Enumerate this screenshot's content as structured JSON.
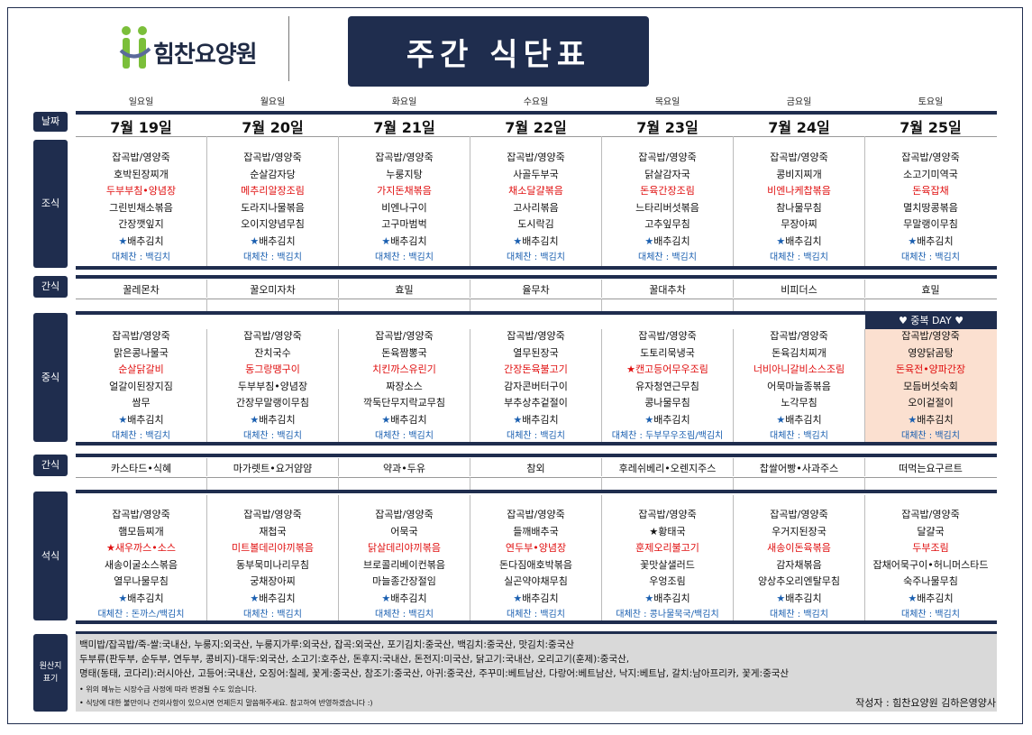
{
  "header": {
    "logo_text": "힘찬요양원",
    "title": "주간 식단표"
  },
  "weekdays": [
    "일요일",
    "월요일",
    "화요일",
    "수요일",
    "목요일",
    "금요일",
    "토요일"
  ],
  "labels": {
    "date": "날짜",
    "breakfast": "조식",
    "snack1": "간식",
    "lunch": "중식",
    "snack2": "간식",
    "dinner": "석식",
    "origin": "원산지\n표기"
  },
  "dates": [
    "7월 19일",
    "7월 20일",
    "7월 21일",
    "7월 22일",
    "7월 23일",
    "7월 24일",
    "7월 25일"
  ],
  "breakfast": [
    [
      "잡곡밥/영양죽",
      "호박된장찌개",
      "두부부침•양념장",
      "그린빈채소볶음",
      "간장깻잎지",
      "★배추김치",
      "대체찬 : 백김치"
    ],
    [
      "잡곡밥/영양죽",
      "순살감자당",
      "메추리알장조림",
      "도라지나물볶음",
      "오이지양념무침",
      "★배추김치",
      "대체찬 : 백김치"
    ],
    [
      "잡곡밥/영양죽",
      "누룽지탕",
      "가지돈채볶음",
      "비엔나구이",
      "고구마범벅",
      "★배추김치",
      "대체찬 : 백김치"
    ],
    [
      "잡곡밥/영양죽",
      "사골두부국",
      "채소달걀볶음",
      "고사리볶음",
      "도시락김",
      "★배추김치",
      "대체찬 : 백김치"
    ],
    [
      "잡곡밥/영양죽",
      "닭살감자국",
      "돈육간장조림",
      "느타리버섯볶음",
      "고추잎무침",
      "★배추김치",
      "대체찬 : 백김치"
    ],
    [
      "잡곡밥/영양죽",
      "콩비지찌개",
      "비엔나케찹볶음",
      "참나물무침",
      "무장아찌",
      "★배추김치",
      "대체찬 : 백김치"
    ],
    [
      "잡곡밥/영양죽",
      "소고기미역국",
      "돈육잡채",
      "멸치땅콩볶음",
      "무말랭이무침",
      "★배추김치",
      "대체찬 : 백김치"
    ]
  ],
  "snack1": [
    "꿀레몬차",
    "꿀오미자차",
    "효밀",
    "율무차",
    "꿀대추차",
    "비피더스",
    "효밀"
  ],
  "lunch_special_header": "♥ 중복 DAY ♥",
  "lunch": [
    [
      "잡곡밥/영양죽",
      "맑은콩나물국",
      "순살닭갈비",
      "얼갈이된장지짐",
      "쌈무",
      "★배추김치",
      "대체찬 : 백김치"
    ],
    [
      "잡곡밥/영양죽",
      "잔치국수",
      "동그랑땡구이",
      "두부부침•양념장",
      "간장무말랭이무침",
      "★배추김치",
      "대체찬 : 백김치"
    ],
    [
      "잡곡밥/영양죽",
      "돈육짬뽕국",
      "치킨까스유린기",
      "짜장소스",
      "깍둑단무지락교무침",
      "★배추김치",
      "대체찬 : 백김치"
    ],
    [
      "잡곡밥/영양죽",
      "열무된장국",
      "간장돈육불고기",
      "감자콘버터구이",
      "부추상추겉절이",
      "★배추김치",
      "대체찬 : 백김치"
    ],
    [
      "잡곡밥/영양죽",
      "도토리묵냉국",
      "★캔고등어무우조림",
      "유자청연근무침",
      "콩나물무침",
      "★배추김치",
      "대체찬 : 두부무우조림/백김치"
    ],
    [
      "잡곡밥/영양죽",
      "돈육김치찌개",
      "너비아니갈비소스조림",
      "어묵마늘종볶음",
      "노각무침",
      "★배추김치",
      "대체찬 : 백김치"
    ],
    [
      "잡곡밥/영양죽",
      "영양닭곰탕",
      "돈육전•양파간장",
      "모듬버섯숙회",
      "오이겉절이",
      "★배추김치",
      "대체찬 : 백김치"
    ]
  ],
  "snack2": [
    "카스타드•식혜",
    "마가렛트•요거얌얌",
    "약과•두유",
    "참외",
    "후레쉬베리•오렌지주스",
    "찹쌀어빵•사과주스",
    "떠먹는요구르트"
  ],
  "dinner": [
    [
      "잡곡밥/영양죽",
      "햄모듬찌개",
      "★새우까스•소스",
      "새송이굴소스볶음",
      "열무나물무침",
      "★배추김치",
      "대체찬 : 돈까스/백김치"
    ],
    [
      "잡곡밥/영양죽",
      "재첩국",
      "미트볼데리야끼볶음",
      "동부묵미나리무침",
      "궁채장아찌",
      "★배추김치",
      "대체찬 : 백김치"
    ],
    [
      "잡곡밥/영양죽",
      "어묵국",
      "닭살데리야끼볶음",
      "브로콜리베이컨볶음",
      "마늘종간장절임",
      "★배추김치",
      "대체찬 : 백김치"
    ],
    [
      "잡곡밥/영양죽",
      "들깨배추국",
      "연두부•양념장",
      "돈다짐애호박볶음",
      "실곤약야채무침",
      "★배추김치",
      "대체찬 : 백김치"
    ],
    [
      "잡곡밥/영양죽",
      "★황태국",
      "훈제오리불고기",
      "꽃맛살샐러드",
      "우엉조림",
      "★배추김치",
      "대체찬 : 콩나물묵국/백김치"
    ],
    [
      "잡곡밥/영양죽",
      "우거지된장국",
      "새송이돈육볶음",
      "감자채볶음",
      "양상추오리엔탈무침",
      "★배추김치",
      "대체찬 : 백김치"
    ],
    [
      "잡곡밥/영양죽",
      "달걀국",
      "두부조림",
      "잡채어묵구이•허니머스타드",
      "숙주나물무침",
      "★배추김치",
      "대체찬 : 백김치"
    ]
  ],
  "red_index": {
    "breakfast": 2,
    "lunch": 2,
    "dinner": 2
  },
  "origin": {
    "line1": "백미밥/잡곡밥/죽-쌀:국내산, 누룽지:외국산, 누룽지가루:외국산, 잡곡:외국산, 포기김치:중국산, 백김치:중국산, 맛김치:중국산",
    "line2": "두부류(판두부, 순두부, 연두부, 콩비지)-대두:외국산, 소고기:호주산, 돈후지:국내산, 돈전지:미국산, 닭고기:국내산, 오리고기(훈제):중국산,",
    "line3": "명태(동태, 코다리):러시아산, 고등어:국내산, 오징어:칠레, 꽃게:중국산, 참조기:중국산, 아귀:중국산, 주꾸미:베트남산, 다랑어:베트남산, 낙지:베트남, 갈치:남아프리카, 꽃게:중국산",
    "note1": "• 위의 메뉴는 시장수급 사정에 따라 변경될 수도 있습니다.",
    "note2": "• 식당에 대한 불만이나 건의사항이 있으시면 언제든지 말씀해주세요. 참고하여 반영하겠습니다 :)",
    "author": "작성자 : 힘찬요양원 김하은영양사"
  },
  "colors": {
    "navy": "#1f2d4e",
    "red": "#e01010",
    "blue": "#1a5fb0",
    "special_bg": "#fbe0d0",
    "origin_bg": "#d9d9d9"
  }
}
